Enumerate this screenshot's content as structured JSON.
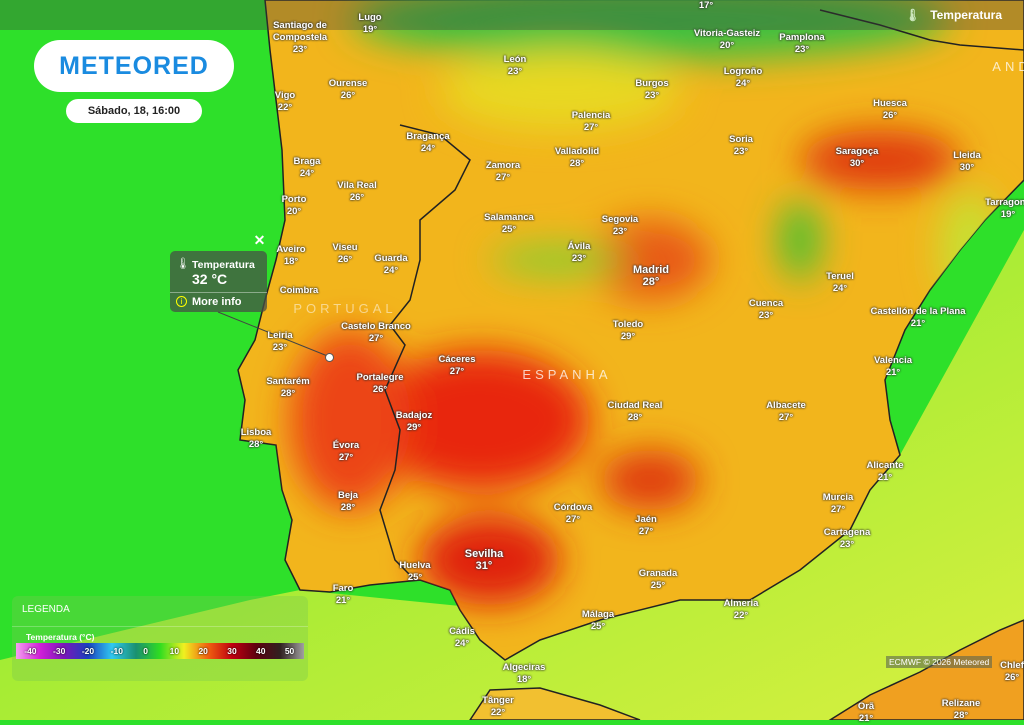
{
  "app": {
    "logo": "METEORED",
    "date_time": "Sábado, 18, 16:00"
  },
  "layer": {
    "label": "Temperatura",
    "icon": "thermometer-icon"
  },
  "tooltip": {
    "title": "Temperatura",
    "value": "32 °C",
    "more": "More info"
  },
  "legend": {
    "title": "LEGENDA",
    "subtitle": "Temperatura (°C)",
    "stops": [
      "-40",
      "-30",
      "-20",
      "-10",
      "0",
      "10",
      "20",
      "30",
      "40",
      "50"
    ],
    "colors": [
      "#f5a0f0",
      "#d020d8",
      "#7a18b8",
      "#1a40c0",
      "#30c8f0",
      "#1a9070",
      "#30dd20",
      "#f0f020",
      "#f06010",
      "#c00010",
      "#600010",
      "#302020",
      "#a0a0a0"
    ]
  },
  "attribution": "ECMWF © 2026 Meteored",
  "countries": [
    "ESPANHA",
    "PORTUGAL",
    "AND"
  ],
  "cities": [
    {
      "name": "",
      "temp": "17°"
    },
    {
      "name": "Santiago de Compostela",
      "temp": "23°"
    },
    {
      "name": "Lugo",
      "temp": "19°"
    },
    {
      "name": "Vitoria-Gasteiz",
      "temp": "20°"
    },
    {
      "name": "Pamplona",
      "temp": "23°"
    },
    {
      "name": "Vigo",
      "temp": "22°"
    },
    {
      "name": "Ourense",
      "temp": "26°"
    },
    {
      "name": "León",
      "temp": "23°"
    },
    {
      "name": "Burgos",
      "temp": "23°"
    },
    {
      "name": "Logroño",
      "temp": "24°"
    },
    {
      "name": "Huesca",
      "temp": "26°"
    },
    {
      "name": "Bragança",
      "temp": "24°"
    },
    {
      "name": "Palencia",
      "temp": "27°"
    },
    {
      "name": "Soria",
      "temp": "23°"
    },
    {
      "name": "Braga",
      "temp": "24°"
    },
    {
      "name": "Valladolid",
      "temp": "28°"
    },
    {
      "name": "Zamora",
      "temp": "27°"
    },
    {
      "name": "Saragoça",
      "temp": "30°"
    },
    {
      "name": "Lleida",
      "temp": "30°"
    },
    {
      "name": "Vila Real",
      "temp": "26°"
    },
    {
      "name": "Porto",
      "temp": "20°"
    },
    {
      "name": "Tarragona",
      "temp": "19°"
    },
    {
      "name": "Salamanca",
      "temp": "25°"
    },
    {
      "name": "Segovia",
      "temp": "23°"
    },
    {
      "name": "Aveiro",
      "temp": "18°"
    },
    {
      "name": "Viseu",
      "temp": "26°"
    },
    {
      "name": "Guarda",
      "temp": "24°"
    },
    {
      "name": "Ávila",
      "temp": "23°"
    },
    {
      "name": "Madrid",
      "temp": "28°"
    },
    {
      "name": "Teruel",
      "temp": "24°"
    },
    {
      "name": "Coimbra",
      "temp": ""
    },
    {
      "name": "Cuenca",
      "temp": "23°"
    },
    {
      "name": "Castelo Branco",
      "temp": "27°"
    },
    {
      "name": "Leiria",
      "temp": "23°"
    },
    {
      "name": "Castellón de la Plana",
      "temp": "21°"
    },
    {
      "name": "Toledo",
      "temp": "29°"
    },
    {
      "name": "Valencia",
      "temp": "21°"
    },
    {
      "name": "Cáceres",
      "temp": "27°"
    },
    {
      "name": "Santarém",
      "temp": "28°"
    },
    {
      "name": "Portalegre",
      "temp": "26°"
    },
    {
      "name": "Lisboa",
      "temp": "28°"
    },
    {
      "name": "Badajoz",
      "temp": "29°"
    },
    {
      "name": "Ciudad Real",
      "temp": "28°"
    },
    {
      "name": "Albacete",
      "temp": "27°"
    },
    {
      "name": "Évora",
      "temp": "27°"
    },
    {
      "name": "Alicante",
      "temp": "21°"
    },
    {
      "name": "Beja",
      "temp": "28°"
    },
    {
      "name": "Murcia",
      "temp": "27°"
    },
    {
      "name": "Córdova",
      "temp": "27°"
    },
    {
      "name": "Jaén",
      "temp": "27°"
    },
    {
      "name": "Cartagena",
      "temp": "23°"
    },
    {
      "name": "Sevilha",
      "temp": "31°"
    },
    {
      "name": "Huelva",
      "temp": "25°"
    },
    {
      "name": "Granada",
      "temp": "25°"
    },
    {
      "name": "Faro",
      "temp": "21°"
    },
    {
      "name": "Almeria",
      "temp": "22°"
    },
    {
      "name": "Málaga",
      "temp": "25°"
    },
    {
      "name": "Cádis",
      "temp": "24°"
    },
    {
      "name": "Algeciras",
      "temp": "18°"
    },
    {
      "name": "Tânger",
      "temp": "22°"
    },
    {
      "name": "Orã",
      "temp": "21°"
    },
    {
      "name": "Relizane",
      "temp": "28°"
    },
    {
      "name": "Chlef",
      "temp": "26°"
    }
  ]
}
